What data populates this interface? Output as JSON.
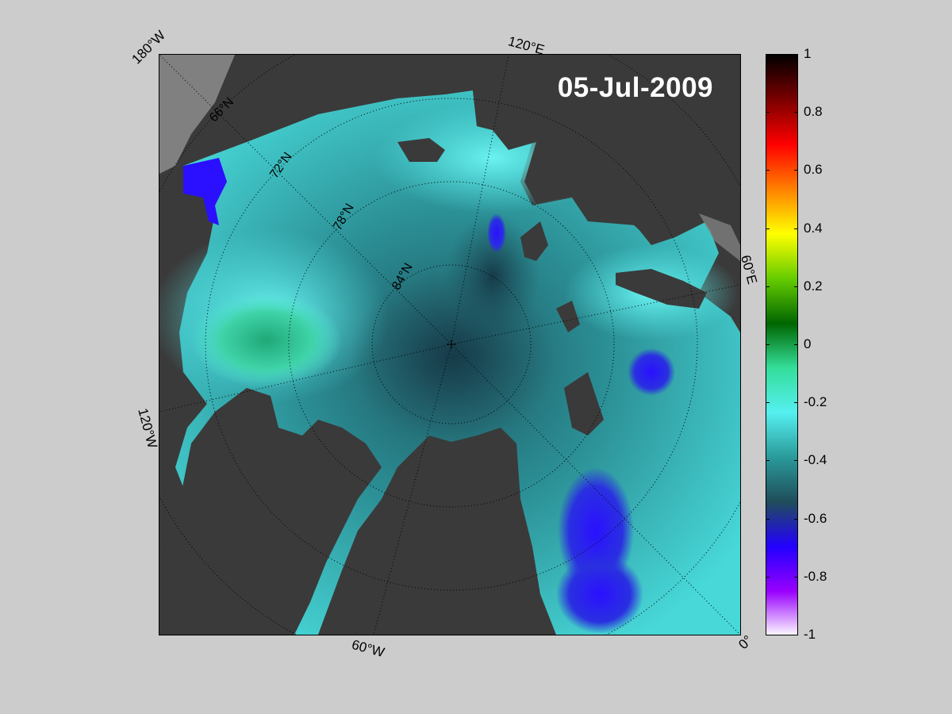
{
  "map": {
    "date": "05-Jul-2009",
    "edge_labels": {
      "top_left": "180°W",
      "top_mid": "120°E",
      "right_mid": "60°E",
      "left_mid": "120°W",
      "bottom_mid": "60°W",
      "bottom_right": "0°"
    },
    "latitude_labels": [
      "66°N",
      "72°N",
      "78°N",
      "84°N"
    ],
    "colors": {
      "land": "#3a3a3a",
      "no_data": "#808080",
      "graticule": "#000000"
    }
  },
  "colorbar": {
    "range": [
      -1,
      1
    ],
    "ticks": [
      "1",
      "0.8",
      "0.6",
      "0.4",
      "0.2",
      "0",
      "-0.2",
      "-0.4",
      "-0.6",
      "-0.8",
      "-1"
    ],
    "colormap": [
      "#000000",
      "#7a0000",
      "#ff0000",
      "#ff8000",
      "#ffff00",
      "#66cc00",
      "#006600",
      "#33dd99",
      "#55f0f0",
      "#2a9a9a",
      "#1f4d5a",
      "#2200ff",
      "#9900ff",
      "#ffffff"
    ]
  }
}
